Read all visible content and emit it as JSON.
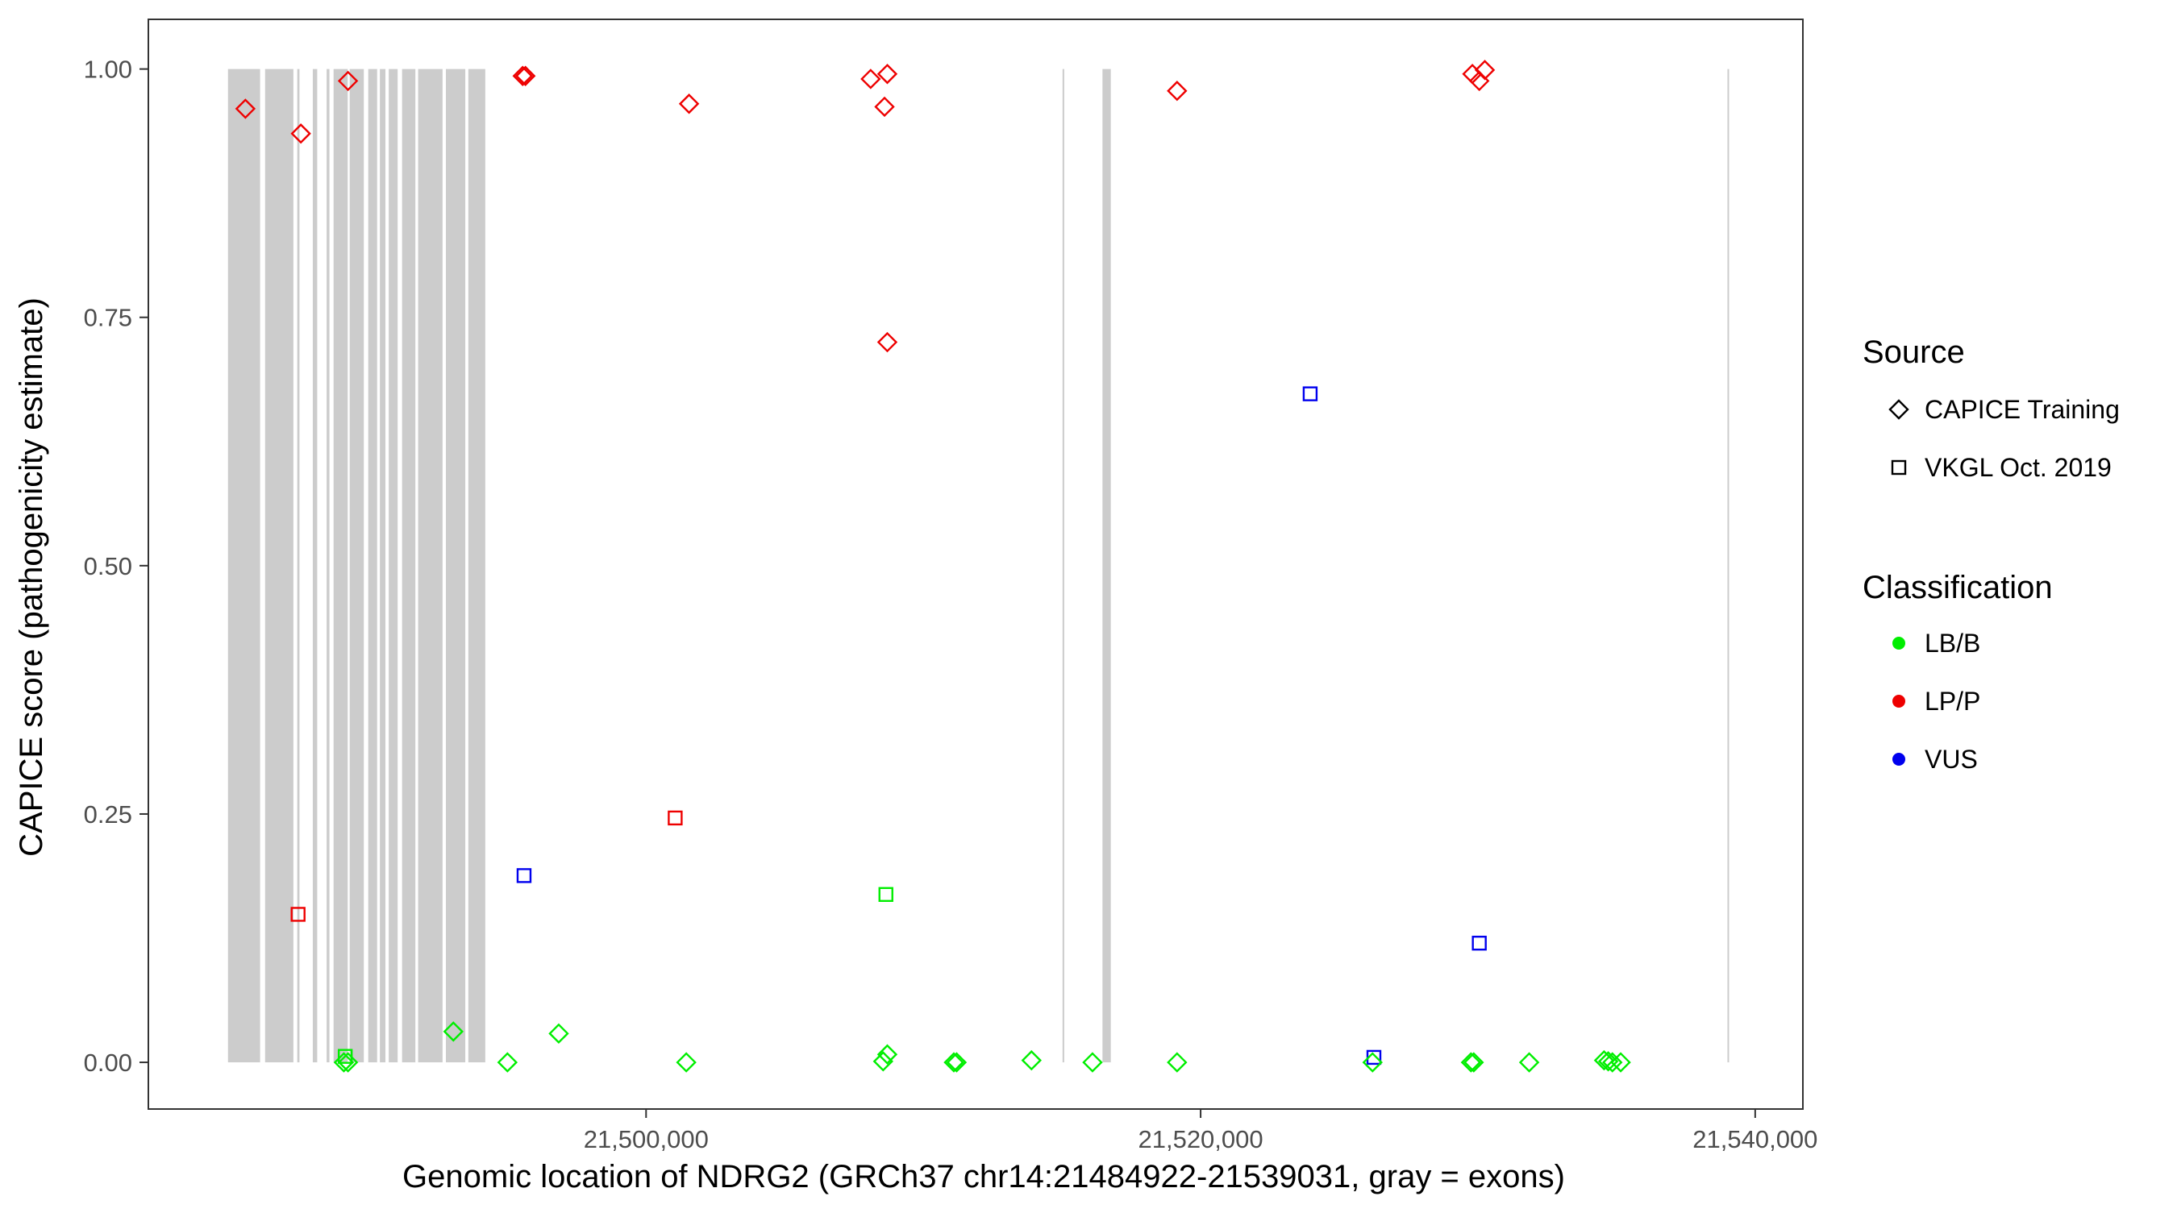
{
  "chart_data": {
    "type": "scatter",
    "title": "",
    "xlabel": "Genomic location of NDRG2 (GRCh37 chr14:21484922-21539031, gray = exons)",
    "ylabel": "CAPICE score (pathogenicity estimate)",
    "xlim": [
      21482050,
      21541720
    ],
    "ylim": [
      -0.047,
      1.05
    ],
    "x_ticks": [
      21500000,
      21520000,
      21540000
    ],
    "x_tick_labels": [
      "21,500,000",
      "21,520,000",
      "21,540,000"
    ],
    "y_ticks": [
      0,
      0.25,
      0.5,
      0.75,
      1
    ],
    "y_tick_labels": [
      "0.00",
      "0.25",
      "0.50",
      "0.75",
      "1.00"
    ],
    "grid": false,
    "legend_position": "right",
    "legend": {
      "source_title": "Source",
      "source_items": [
        {
          "label": "CAPICE Training",
          "shape": "diamond"
        },
        {
          "label": "VKGL Oct. 2019",
          "shape": "square"
        }
      ],
      "class_title": "Classification",
      "class_items": [
        {
          "label": "LB/B",
          "color": "#00ee00"
        },
        {
          "label": "LP/P",
          "color": "#ee0000"
        },
        {
          "label": "VUS",
          "color": "#0000ee"
        }
      ]
    },
    "colors": {
      "LB/B": "#00ee00",
      "LP/P": "#ee0000",
      "VUS": "#0000ee",
      "exon": "#cccccc"
    },
    "exons": [
      [
        21484922,
        21486080
      ],
      [
        21486260,
        21487280
      ],
      [
        21487420,
        21487500
      ],
      [
        21487980,
        21488140
      ],
      [
        21488480,
        21488580
      ],
      [
        21488730,
        21489240
      ],
      [
        21489310,
        21489820
      ],
      [
        21489980,
        21490300
      ],
      [
        21490400,
        21490600
      ],
      [
        21490720,
        21491040
      ],
      [
        21491200,
        21491680
      ],
      [
        21491780,
        21492660
      ],
      [
        21492780,
        21493480
      ],
      [
        21493590,
        21494200
      ],
      [
        21515020,
        21515080
      ],
      [
        21516460,
        21516760
      ],
      [
        21539000,
        21539031
      ]
    ],
    "series": [
      {
        "name": "",
        "source": "CAPICE Training",
        "classification": "LP/P",
        "points": [
          {
            "x": 21485550,
            "y": 0.96
          },
          {
            "x": 21487550,
            "y": 0.935
          },
          {
            "x": 21489250,
            "y": 0.988
          },
          {
            "x": 21495550,
            "y": 0.993
          },
          {
            "x": 21495650,
            "y": 0.993
          },
          {
            "x": 21501550,
            "y": 0.965
          },
          {
            "x": 21508100,
            "y": 0.99
          },
          {
            "x": 21508700,
            "y": 0.995
          },
          {
            "x": 21508600,
            "y": 0.962
          },
          {
            "x": 21508700,
            "y": 0.725
          },
          {
            "x": 21519150,
            "y": 0.978
          },
          {
            "x": 21529800,
            "y": 0.995
          },
          {
            "x": 21530050,
            "y": 0.988
          },
          {
            "x": 21530250,
            "y": 0.999
          }
        ]
      },
      {
        "name": "",
        "source": "VKGL Oct. 2019",
        "classification": "LP/P",
        "points": [
          {
            "x": 21487450,
            "y": 0.149
          },
          {
            "x": 21501050,
            "y": 0.246
          }
        ]
      },
      {
        "name": "",
        "source": "VKGL Oct. 2019",
        "classification": "VUS",
        "points": [
          {
            "x": 21495600,
            "y": 0.188
          },
          {
            "x": 21523950,
            "y": 0.673
          },
          {
            "x": 21526250,
            "y": 0.005
          },
          {
            "x": 21530050,
            "y": 0.12
          }
        ]
      },
      {
        "name": "",
        "source": "VKGL Oct. 2019",
        "classification": "LB/B",
        "points": [
          {
            "x": 21508650,
            "y": 0.169
          },
          {
            "x": 21489150,
            "y": 0.006
          }
        ]
      },
      {
        "name": "",
        "source": "CAPICE Training",
        "classification": "LB/B",
        "points": [
          {
            "x": 21489100,
            "y": 0.0
          },
          {
            "x": 21489250,
            "y": 0.0
          },
          {
            "x": 21493050,
            "y": 0.031
          },
          {
            "x": 21495000,
            "y": 0.0
          },
          {
            "x": 21496850,
            "y": 0.029
          },
          {
            "x": 21501450,
            "y": 0.0
          },
          {
            "x": 21508550,
            "y": 0.001
          },
          {
            "x": 21508700,
            "y": 0.008
          },
          {
            "x": 21511100,
            "y": 0.0
          },
          {
            "x": 21511200,
            "y": 0.0
          },
          {
            "x": 21513900,
            "y": 0.002
          },
          {
            "x": 21516100,
            "y": 0.0
          },
          {
            "x": 21519150,
            "y": 0.0
          },
          {
            "x": 21526200,
            "y": 0.0
          },
          {
            "x": 21529750,
            "y": 0.0
          },
          {
            "x": 21529850,
            "y": 0.0
          },
          {
            "x": 21531850,
            "y": 0.0
          },
          {
            "x": 21534550,
            "y": 0.002
          },
          {
            "x": 21534700,
            "y": 0.001
          },
          {
            "x": 21534850,
            "y": 0.0
          },
          {
            "x": 21535150,
            "y": 0.0
          }
        ]
      }
    ]
  }
}
